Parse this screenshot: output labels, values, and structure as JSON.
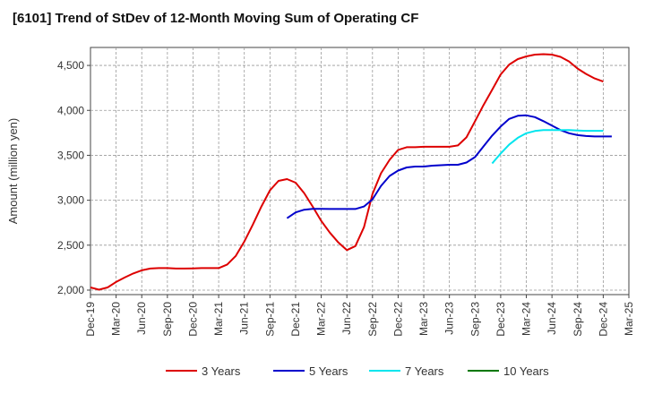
{
  "chart_data": {
    "type": "line",
    "title": "[6101]  Trend of StDev of 12-Month Moving Sum of Operating CF",
    "xlabel": "",
    "ylabel": "Amount (million yen)",
    "ylim": [
      1950,
      4700
    ],
    "y_ticks": [
      2000,
      2500,
      3000,
      3500,
      4000,
      4500
    ],
    "y_tick_labels": [
      "2,000",
      "2,500",
      "3,000",
      "3,500",
      "4,000",
      "4,500"
    ],
    "x_tick_labels": [
      "Dec-19",
      "Mar-20",
      "Jun-20",
      "Sep-20",
      "Dec-20",
      "Mar-21",
      "Jun-21",
      "Sep-21",
      "Dec-21",
      "Mar-22",
      "Jun-22",
      "Sep-22",
      "Dec-22",
      "Mar-23",
      "Jun-23",
      "Sep-23",
      "Dec-23",
      "Mar-24",
      "Jun-24",
      "Sep-24",
      "Dec-24",
      "Mar-25"
    ],
    "grid": true,
    "legend_position": "bottom",
    "series": [
      {
        "name": "3 Years",
        "color": "#dd0000",
        "start": "Dec-19",
        "values": [
          2030,
          2005,
          2030,
          2090,
          2140,
          2185,
          2220,
          2240,
          2245,
          2245,
          2240,
          2240,
          2242,
          2245,
          2245,
          2245,
          2285,
          2380,
          2540,
          2730,
          2930,
          3110,
          3215,
          3235,
          3195,
          3080,
          2930,
          2770,
          2640,
          2530,
          2445,
          2490,
          2700,
          3070,
          3300,
          3450,
          3560,
          3590,
          3590,
          3595,
          3595,
          3595,
          3595,
          3610,
          3700,
          3880,
          4060,
          4230,
          4400,
          4510,
          4570,
          4600,
          4620,
          4625,
          4620,
          4595,
          4545,
          4465,
          4405,
          4355,
          4320
        ]
      },
      {
        "name": "5 Years",
        "color": "#0000cc",
        "start": "Nov-21",
        "values": [
          2800,
          2865,
          2895,
          2905,
          2905,
          2903,
          2903,
          2903,
          2903,
          2930,
          3010,
          3160,
          3270,
          3330,
          3365,
          3375,
          3375,
          3385,
          3390,
          3395,
          3395,
          3420,
          3480,
          3600,
          3720,
          3820,
          3905,
          3940,
          3945,
          3925,
          3880,
          3830,
          3780,
          3745,
          3725,
          3715,
          3710,
          3710,
          3710
        ]
      },
      {
        "name": "7 Years",
        "color": "#00e5ee",
        "start": "Nov-23",
        "values": [
          3410,
          3520,
          3620,
          3695,
          3745,
          3770,
          3780,
          3780,
          3780,
          3780,
          3775,
          3772,
          3772,
          3772
        ]
      },
      {
        "name": "10 Years",
        "color": "#007700",
        "start": "Dec-24",
        "values": []
      }
    ]
  }
}
